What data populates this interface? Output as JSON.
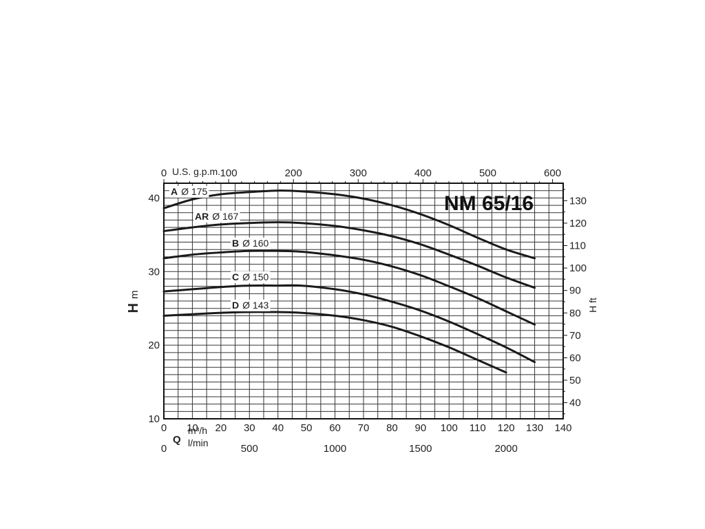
{
  "chart_data": {
    "type": "line",
    "title": "NM 65/16",
    "x_primary": {
      "unit_top": "m³/h",
      "unit_bottom": "l/min",
      "symbol": "Q",
      "range": [
        0,
        140
      ],
      "ticks": [
        0,
        10,
        20,
        30,
        40,
        50,
        60,
        70,
        80,
        90,
        100,
        110,
        120,
        130,
        140
      ]
    },
    "x_lmin": {
      "ticks": [
        0,
        500,
        1000,
        1500,
        2000
      ]
    },
    "x_gpm": {
      "label": "U.S. g.p.m.",
      "ticks": [
        0,
        100,
        200,
        300,
        400,
        500,
        600
      ]
    },
    "y_primary": {
      "symbol": "H",
      "unit": "m",
      "range": [
        10,
        42
      ],
      "ticks": [
        10,
        20,
        30,
        40
      ]
    },
    "y_secondary": {
      "label": "H ft",
      "ticks": [
        40,
        50,
        60,
        70,
        80,
        90,
        100,
        110,
        120,
        130
      ]
    },
    "grid": true,
    "series": [
      {
        "name": "A",
        "diameter": "Ø 175",
        "x": [
          0,
          10,
          20,
          30,
          40,
          48,
          60,
          70,
          80,
          90,
          100,
          110,
          120,
          130
        ],
        "y": [
          38.6,
          39.8,
          40.5,
          40.8,
          41.0,
          40.9,
          40.5,
          39.9,
          39.0,
          37.8,
          36.3,
          34.6,
          33.0,
          31.8
        ]
      },
      {
        "name": "AR",
        "diameter": "Ø 167",
        "x": [
          0,
          10,
          20,
          30,
          40,
          48,
          60,
          70,
          80,
          90,
          100,
          110,
          120,
          130
        ],
        "y": [
          35.5,
          36.0,
          36.4,
          36.6,
          36.7,
          36.6,
          36.2,
          35.6,
          34.8,
          33.7,
          32.3,
          30.8,
          29.2,
          27.8
        ]
      },
      {
        "name": "B",
        "diameter": "Ø 160",
        "x": [
          0,
          10,
          20,
          30,
          40,
          48,
          60,
          70,
          80,
          90,
          100,
          110,
          120,
          130
        ],
        "y": [
          31.8,
          32.3,
          32.6,
          32.8,
          32.8,
          32.7,
          32.2,
          31.6,
          30.7,
          29.5,
          28.0,
          26.4,
          24.6,
          22.8
        ]
      },
      {
        "name": "C",
        "diameter": "Ø 150",
        "x": [
          0,
          10,
          20,
          30,
          40,
          48,
          60,
          70,
          80,
          90,
          100,
          110,
          120,
          130
        ],
        "y": [
          27.3,
          27.6,
          27.9,
          28.1,
          28.1,
          28.1,
          27.6,
          26.9,
          25.9,
          24.7,
          23.2,
          21.5,
          19.7,
          17.7
        ]
      },
      {
        "name": "D",
        "diameter": "Ø 143",
        "x": [
          0,
          10,
          20,
          30,
          40,
          48,
          60,
          70,
          80,
          90,
          100,
          110,
          120
        ],
        "y": [
          24.0,
          24.2,
          24.4,
          24.5,
          24.5,
          24.4,
          24.0,
          23.4,
          22.5,
          21.2,
          19.7,
          18.0,
          16.3
        ]
      }
    ]
  }
}
